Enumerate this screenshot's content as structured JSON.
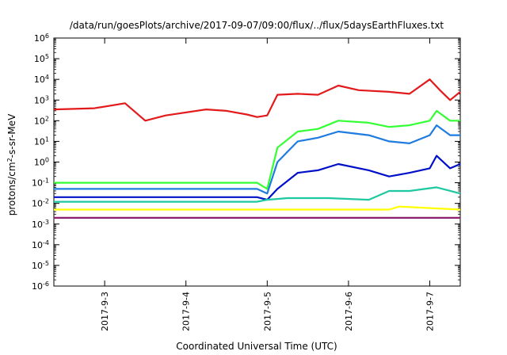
{
  "chart_data": {
    "type": "line",
    "title": "/data/run/goesPlots/archive/2017-09-07/09:00/flux/../flux/5daysEarthFluxes.txt",
    "xlabel": "Coordinated Universal Time (UTC)",
    "ylabel_parts": {
      "base": "protons/cm",
      "sup": "2",
      "rest": "-s-sr-MeV"
    },
    "yscale": "log",
    "ylim": [
      1e-06,
      1000000.0
    ],
    "xlim": [
      "2017-09-02T09:00",
      "2017-09-07T09:00"
    ],
    "grid": false,
    "legend": "none",
    "y_ticks": [
      {
        "base": "10",
        "exp": "-6",
        "value": 1e-06
      },
      {
        "base": "10",
        "exp": "-5",
        "value": 1e-05
      },
      {
        "base": "10",
        "exp": "-4",
        "value": 0.0001
      },
      {
        "base": "10",
        "exp": "-3",
        "value": 0.001
      },
      {
        "base": "10",
        "exp": "-2",
        "value": 0.01
      },
      {
        "base": "10",
        "exp": "-1",
        "value": 0.1
      },
      {
        "base": "10",
        "exp": "0",
        "value": 1
      },
      {
        "base": "10",
        "exp": "1",
        "value": 10.0
      },
      {
        "base": "10",
        "exp": "2",
        "value": 100.0
      },
      {
        "base": "10",
        "exp": "3",
        "value": 1000.0
      },
      {
        "base": "10",
        "exp": "4",
        "value": 10000.0
      },
      {
        "base": "10",
        "exp": "5",
        "value": 100000.0
      },
      {
        "base": "10",
        "exp": "6",
        "value": 1000000.0
      }
    ],
    "x_ticks": [
      {
        "label": "2017-9-3",
        "x": "2017-09-03T00:00"
      },
      {
        "label": "2017-9-4",
        "x": "2017-09-04T00:00"
      },
      {
        "label": "2017-9-5",
        "x": "2017-09-05T00:00"
      },
      {
        "label": "2017-9-6",
        "x": "2017-09-06T00:00"
      },
      {
        "label": "2017-9-7",
        "x": "2017-09-07T00:00"
      }
    ],
    "series": [
      {
        "color": "#e31a1c",
        "x": [
          "2017-09-02T09:00",
          "2017-09-02T21:00",
          "2017-09-03T06:00",
          "2017-09-03T12:00",
          "2017-09-03T18:00",
          "2017-09-04T06:00",
          "2017-09-04T12:00",
          "2017-09-04T18:00",
          "2017-09-04T21:00",
          "2017-09-05T00:00",
          "2017-09-05T03:00",
          "2017-09-05T09:00",
          "2017-09-05T15:00",
          "2017-09-05T21:00",
          "2017-09-06T03:00",
          "2017-09-06T12:00",
          "2017-09-06T18:00",
          "2017-09-07T00:00",
          "2017-09-07T03:00",
          "2017-09-07T06:00",
          "2017-09-07T09:00"
        ],
        "y": [
          350,
          400,
          700,
          100,
          180,
          350,
          300,
          200,
          150,
          180,
          1800,
          2000,
          1800,
          5000,
          3000,
          2500,
          2000,
          10000,
          3000,
          1000,
          2500
        ]
      },
      {
        "color": "#33ff33",
        "x": [
          "2017-09-02T09:00",
          "2017-09-04T21:00",
          "2017-09-05T00:00",
          "2017-09-05T03:00",
          "2017-09-05T09:00",
          "2017-09-05T15:00",
          "2017-09-05T21:00",
          "2017-09-06T06:00",
          "2017-09-06T12:00",
          "2017-09-06T18:00",
          "2017-09-07T00:00",
          "2017-09-07T02:00",
          "2017-09-07T06:00",
          "2017-09-07T09:00"
        ],
        "y": [
          0.1,
          0.1,
          0.05,
          5,
          30,
          40,
          100,
          80,
          50,
          60,
          100,
          300,
          100,
          100
        ]
      },
      {
        "color": "#1e7be0",
        "x": [
          "2017-09-02T09:00",
          "2017-09-04T21:00",
          "2017-09-05T00:00",
          "2017-09-05T03:00",
          "2017-09-05T09:00",
          "2017-09-05T15:00",
          "2017-09-05T21:00",
          "2017-09-06T06:00",
          "2017-09-06T12:00",
          "2017-09-06T18:00",
          "2017-09-07T00:00",
          "2017-09-07T02:00",
          "2017-09-07T06:00",
          "2017-09-07T09:00"
        ],
        "y": [
          0.05,
          0.05,
          0.03,
          1,
          10,
          15,
          30,
          20,
          10,
          8,
          20,
          60,
          20,
          20
        ]
      },
      {
        "color": "#0010c8",
        "x": [
          "2017-09-02T09:00",
          "2017-09-04T21:00",
          "2017-09-05T00:00",
          "2017-09-05T03:00",
          "2017-09-05T09:00",
          "2017-09-05T15:00",
          "2017-09-05T21:00",
          "2017-09-06T06:00",
          "2017-09-06T12:00",
          "2017-09-06T18:00",
          "2017-09-07T00:00",
          "2017-09-07T02:00",
          "2017-09-07T06:00",
          "2017-09-07T09:00"
        ],
        "y": [
          0.02,
          0.02,
          0.015,
          0.05,
          0.3,
          0.4,
          0.8,
          0.4,
          0.2,
          0.3,
          0.5,
          2,
          0.5,
          0.8
        ]
      },
      {
        "color": "#1ec8a0",
        "x": [
          "2017-09-02T09:00",
          "2017-09-04T21:00",
          "2017-09-05T00:00",
          "2017-09-05T06:00",
          "2017-09-05T18:00",
          "2017-09-06T06:00",
          "2017-09-06T12:00",
          "2017-09-06T18:00",
          "2017-09-07T02:00",
          "2017-09-07T09:00"
        ],
        "y": [
          0.012,
          0.012,
          0.015,
          0.018,
          0.018,
          0.015,
          0.04,
          0.04,
          0.06,
          0.03
        ]
      },
      {
        "color": "#ffff00",
        "x": [
          "2017-09-02T09:00",
          "2017-09-05T00:00",
          "2017-09-06T12:00",
          "2017-09-06T15:00",
          "2017-09-07T09:00"
        ],
        "y": [
          0.005,
          0.005,
          0.005,
          0.007,
          0.005
        ]
      },
      {
        "color": "#8e1f6e",
        "x": [
          "2017-09-02T09:00",
          "2017-09-04T21:00",
          "2017-09-05T00:00",
          "2017-09-06T00:00",
          "2017-09-07T09:00"
        ],
        "y": [
          0.002,
          0.002,
          0.002,
          0.002,
          0.002
        ]
      }
    ]
  }
}
